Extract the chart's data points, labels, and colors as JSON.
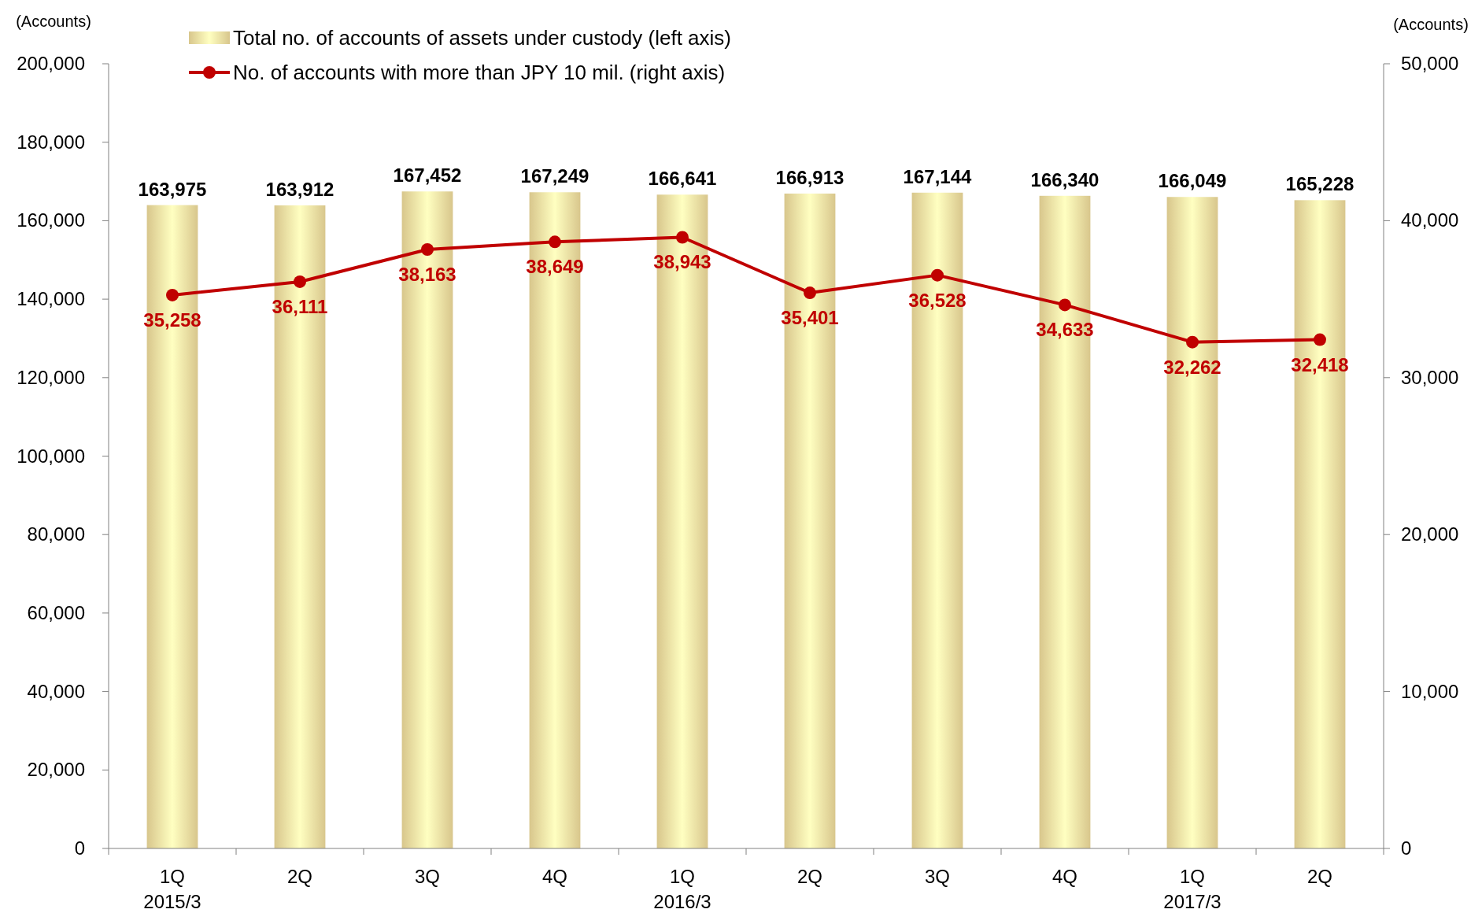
{
  "chart_data": {
    "type": "bar",
    "ylabel": "(Accounts)",
    "y2label": "(Accounts)",
    "categories": [
      "1Q\n2015/3",
      "2Q",
      "3Q",
      "4Q",
      "1Q\n2016/3",
      "2Q",
      "3Q",
      "4Q",
      "1Q\n2017/3",
      "2Q"
    ],
    "series": [
      {
        "name": "Total no. of accounts of assets under custody (left axis)",
        "color": "#d8c68c",
        "values": [
          163975,
          163912,
          167452,
          167249,
          166641,
          166913,
          167144,
          166340,
          166049,
          165228
        ],
        "value_labels": [
          "163,975",
          "163,912",
          "167,452",
          "167,249",
          "166,641",
          "166,913",
          "167,144",
          "166,340",
          "166,049",
          "165,228"
        ]
      },
      {
        "name": "No. of accounts with more than JPY 10 mil. (right axis)",
        "type": "line",
        "axis": "y2",
        "color": "#c00000",
        "values": [
          35258,
          36111,
          38163,
          38649,
          38943,
          35401,
          36528,
          34633,
          32262,
          32418
        ],
        "value_labels": [
          "35,258",
          "36,111",
          "38,163",
          "38,649",
          "38,943",
          "35,401",
          "36,528",
          "34,633",
          "32,262",
          "32,418"
        ]
      }
    ],
    "ylim": [
      0,
      200000
    ],
    "yticks": [
      {
        "value": 0,
        "label": "0"
      },
      {
        "value": 20000,
        "label": "20,000"
      },
      {
        "value": 40000,
        "label": "40,000"
      },
      {
        "value": 60000,
        "label": "60,000"
      },
      {
        "value": 80000,
        "label": "80,000"
      },
      {
        "value": 100000,
        "label": "100,000"
      },
      {
        "value": 120000,
        "label": "120,000"
      },
      {
        "value": 140000,
        "label": "140,000"
      },
      {
        "value": 160000,
        "label": "160,000"
      },
      {
        "value": 180000,
        "label": "180,000"
      },
      {
        "value": 200000,
        "label": "200,000"
      }
    ],
    "y2lim": [
      0,
      50000
    ],
    "y2ticks": [
      {
        "value": 0,
        "label": "0"
      },
      {
        "value": 10000,
        "label": "10,000"
      },
      {
        "value": 20000,
        "label": "20,000"
      },
      {
        "value": 30000,
        "label": "30,000"
      },
      {
        "value": 40000,
        "label": "40,000"
      },
      {
        "value": 50000,
        "label": "50,000"
      }
    ],
    "legend": "top left",
    "marker": "circle",
    "grid": false
  }
}
